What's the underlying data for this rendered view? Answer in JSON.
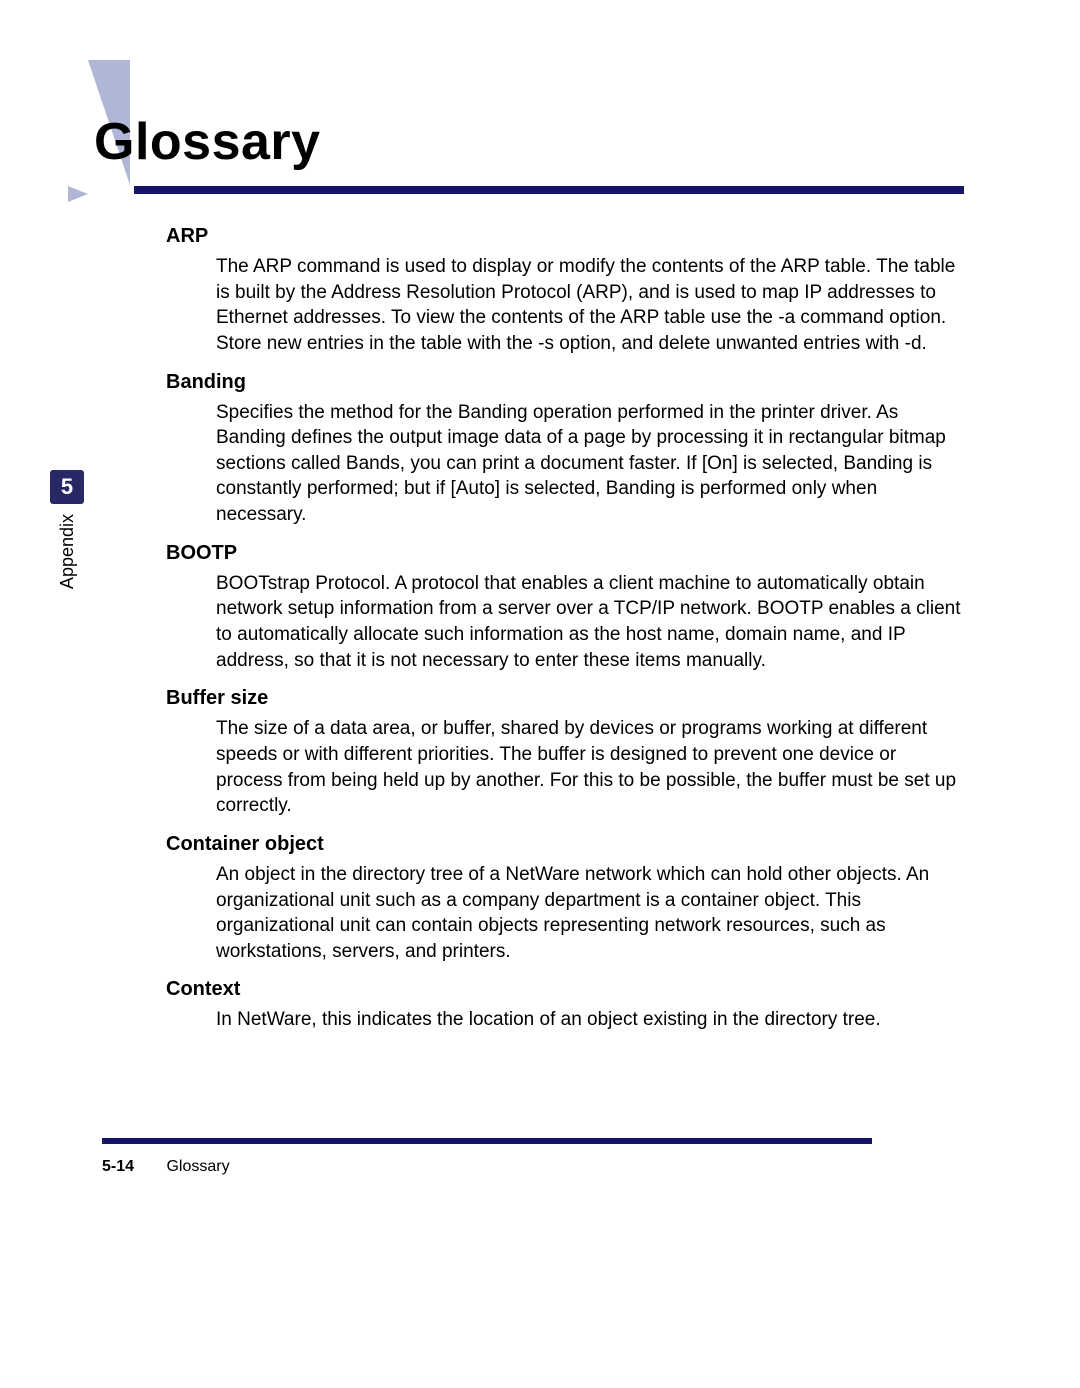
{
  "colors": {
    "rule": "#161569",
    "triangle": "#b0b6d6",
    "tab_bg": "#292867",
    "tab_fg": "#ffffff",
    "text": "#000000",
    "background": "#ffffff"
  },
  "typography": {
    "title_fontsize": 52,
    "term_fontsize": 20,
    "definition_fontsize": 19,
    "footer_fontsize": 16,
    "tab_label_fontsize": 18,
    "tab_number_fontsize": 22
  },
  "section_title": "Glossary",
  "side_tab": {
    "number": "5",
    "label": "Appendix"
  },
  "entries": [
    {
      "term": "ARP",
      "definition": "The ARP command is used to display or modify the contents of the ARP table. The table is built by the Address Resolution Protocol (ARP), and is used to map IP addresses to Ethernet addresses. To view the contents of the ARP table use the -a command option. Store new entries in the table with the -s option, and delete unwanted entries with -d."
    },
    {
      "term": "Banding",
      "definition": "Specifies the method for the Banding operation performed in the printer driver. As Banding defines the output image data of a page by processing it in rectangular bitmap sections called Bands, you can print a document faster. If [On] is selected, Banding is constantly performed; but if [Auto] is selected, Banding is performed only when necessary."
    },
    {
      "term": "BOOTP",
      "definition": "BOOTstrap Protocol. A protocol that enables a client machine to automatically obtain network setup information from a server over a TCP/IP network. BOOTP enables a client to automatically allocate such information as the host name, domain name, and IP address, so that it is not necessary to enter these items manually."
    },
    {
      "term": "Buffer size",
      "definition": "The size of a data area, or buffer, shared by devices or programs working at different speeds or with different priorities. The buffer is designed to prevent one device or process from being held up by another. For this to be possible, the buffer must be set up correctly."
    },
    {
      "term": "Container object",
      "definition": "An object in the directory tree of a NetWare network which can hold other objects. An organizational unit such as a company department is a container object. This organizational unit can contain objects representing network resources, such as workstations, servers, and printers."
    },
    {
      "term": "Context",
      "definition": "In NetWare, this indicates the location of an object existing in the directory tree."
    }
  ],
  "footer": {
    "page_number": "5-14",
    "section_name": "Glossary"
  }
}
